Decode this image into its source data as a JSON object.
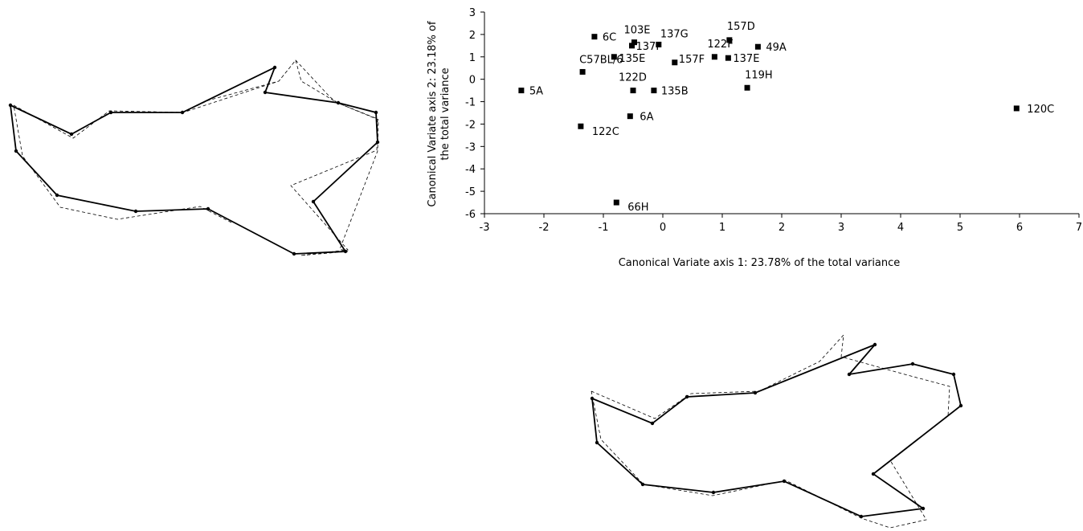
{
  "chart_data": {
    "type": "scatter",
    "title": "",
    "xlabel": "Canonical Variate axis 1: 23.78% of the total variance",
    "ylabel_line1": "Canonical Variate axis 2: 23.18% of",
    "ylabel_line2": "the total variance",
    "xlim": [
      -3,
      7
    ],
    "ylim": [
      -6,
      3
    ],
    "xticks": [
      -3,
      -2,
      -1,
      0,
      1,
      2,
      3,
      4,
      5,
      6,
      7
    ],
    "yticks": [
      -6,
      -5,
      -4,
      -3,
      -2,
      -1,
      0,
      1,
      2,
      3
    ],
    "grid": false,
    "legend": "none",
    "marker_color": "#000000",
    "points": [
      {
        "label": "5A",
        "x": -2.38,
        "y": -0.5
      },
      {
        "label": "6C",
        "x": -1.15,
        "y": 1.9
      },
      {
        "label": "103E",
        "x": -0.48,
        "y": 1.65
      },
      {
        "label": "137F",
        "x": -0.52,
        "y": 1.5
      },
      {
        "label": "137G",
        "x": -0.07,
        "y": 1.55
      },
      {
        "label": "157D",
        "x": 1.12,
        "y": 1.75
      },
      {
        "label": "49A",
        "x": 1.6,
        "y": 1.45
      },
      {
        "label": "122F",
        "x": 0.87,
        "y": 1.0
      },
      {
        "label": "137E",
        "x": 1.1,
        "y": 0.95
      },
      {
        "label": "157F",
        "x": 0.2,
        "y": 0.75
      },
      {
        "label": "C57BL/6",
        "x": -1.35,
        "y": 0.33
      },
      {
        "label": "135E",
        "x": -0.82,
        "y": 1.0
      },
      {
        "label": "122D",
        "x": -0.5,
        "y": -0.5
      },
      {
        "label": "135B",
        "x": -0.15,
        "y": -0.5
      },
      {
        "label": "119H",
        "x": 1.42,
        "y": -0.38
      },
      {
        "label": "6A",
        "x": -0.55,
        "y": -1.65
      },
      {
        "label": "122C",
        "x": -1.38,
        "y": -2.1
      },
      {
        "label": "120C",
        "x": 5.95,
        "y": -1.3
      },
      {
        "label": "66H",
        "x": -0.78,
        "y": -5.5
      }
    ]
  },
  "outline_diagrams": [
    {
      "style_solid": "#000000",
      "style_dashed": "#000000"
    },
    {
      "style_solid": "#000000",
      "style_dashed": "#000000"
    }
  ]
}
